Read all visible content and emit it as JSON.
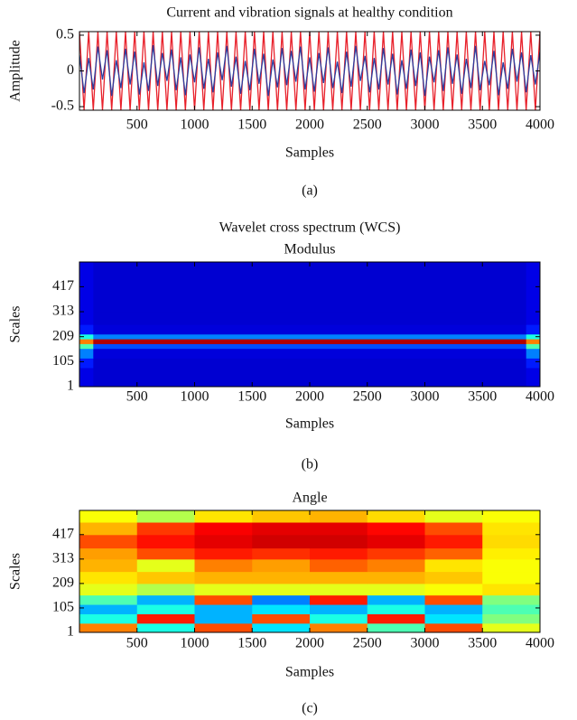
{
  "chart_data": [
    {
      "type": "line",
      "title": "Current and vibration signals at healthy condition",
      "xlabel": "Samples",
      "ylabel": "Amplitude",
      "caption": "(a)",
      "x": [
        0,
        40,
        80,
        120,
        160,
        200,
        240,
        280,
        320,
        360,
        400,
        440,
        480,
        520,
        560,
        600,
        640,
        680,
        720,
        760,
        800,
        840,
        880,
        920,
        960,
        1000,
        1040,
        1080,
        1120,
        1160,
        1200,
        1240,
        1280,
        1320,
        1360,
        1400,
        1440,
        1480,
        1520,
        1560,
        1600,
        1640,
        1680,
        1720,
        1760,
        1800,
        1840,
        1880,
        1920,
        1960,
        2000,
        2040,
        2080,
        2120,
        2160,
        2200,
        2240,
        2280,
        2320,
        2360,
        2400,
        2440,
        2480,
        2520,
        2560,
        2600,
        2640,
        2680,
        2720,
        2760,
        2800,
        2840,
        2880,
        2920,
        2960,
        3000,
        3040,
        3080,
        3120,
        3160,
        3200,
        3240,
        3280,
        3320,
        3360,
        3400,
        3440,
        3480,
        3520,
        3560,
        3600,
        3640,
        3680,
        3720,
        3760,
        3800,
        3840,
        3880,
        3920,
        3960,
        4000
      ],
      "series": [
        {
          "color": "#e8202a",
          "values": [
            0.55,
            -0.55,
            0.55,
            -0.55,
            0.55,
            -0.55,
            0.55,
            -0.55,
            0.55,
            -0.55,
            0.55,
            -0.55,
            0.55,
            -0.55,
            0.55,
            -0.55,
            0.55,
            -0.55,
            0.55,
            -0.55,
            0.55,
            -0.55,
            0.55,
            -0.55,
            0.55,
            -0.55,
            0.55,
            -0.55,
            0.55,
            -0.55,
            0.55,
            -0.55,
            0.55,
            -0.55,
            0.55,
            -0.55,
            0.55,
            -0.55,
            0.55,
            -0.55,
            0.55,
            -0.55,
            0.55,
            -0.55,
            0.55,
            -0.55,
            0.55,
            -0.55,
            0.55,
            -0.55,
            0.55,
            -0.55,
            0.55,
            -0.55,
            0.55,
            -0.55,
            0.55,
            -0.55,
            0.55,
            -0.55,
            0.55,
            -0.55,
            0.55,
            -0.55,
            0.55,
            -0.55,
            0.55,
            -0.55,
            0.55,
            -0.55,
            0.55,
            -0.55,
            0.55,
            -0.55,
            0.55,
            -0.55,
            0.55,
            -0.55,
            0.55,
            -0.55,
            0.55,
            -0.55,
            0.55,
            -0.55,
            0.55,
            -0.55,
            0.55,
            -0.55,
            0.55,
            -0.55,
            0.55,
            -0.55,
            0.55,
            -0.55,
            0.55,
            -0.55,
            0.55,
            -0.55,
            0.55,
            -0.55,
            0.55
          ]
        },
        {
          "color": "#2b3fa0",
          "values": [
            0.22,
            -0.31,
            0.18,
            -0.26,
            0.34,
            -0.12,
            0.29,
            -0.35,
            0.15,
            -0.24,
            0.31,
            -0.19,
            0.27,
            -0.33,
            0.12,
            -0.28,
            0.36,
            -0.21,
            0.25,
            -0.14,
            0.3,
            -0.27,
            0.19,
            -0.34,
            0.23,
            -0.16,
            0.33,
            -0.25,
            0.17,
            -0.3,
            0.26,
            -0.13,
            0.35,
            -0.22,
            0.2,
            -0.32,
            0.14,
            -0.27,
            0.31,
            -0.18,
            0.24,
            -0.35,
            0.16,
            -0.23,
            0.32,
            -0.2,
            0.28,
            -0.15,
            0.34,
            -0.26,
            0.19,
            -0.29,
            0.25,
            -0.17,
            0.33,
            -0.24,
            0.13,
            -0.31,
            0.27,
            -0.22,
            0.35,
            -0.14,
            0.21,
            -0.3,
            0.18,
            -0.26,
            0.32,
            -0.19,
            0.24,
            -0.33,
            0.15,
            -0.25,
            0.3,
            -0.21,
            0.26,
            -0.35,
            0.2,
            -0.16,
            0.29,
            -0.28,
            0.33,
            -0.18,
            0.23,
            -0.32,
            0.17,
            -0.24,
            0.35,
            -0.27,
            0.14,
            -0.2,
            0.28,
            -0.34,
            0.12,
            -0.25,
            0.31,
            -0.15,
            0.26,
            -0.3,
            0.22,
            -0.19,
            0.27
          ]
        }
      ],
      "xlim": [
        0,
        4000
      ],
      "xticks": [
        500,
        1000,
        1500,
        2000,
        2500,
        3000,
        3500,
        4000
      ],
      "ylim": [
        -0.55,
        0.55
      ],
      "yticks": [
        -0.5,
        0,
        0.5
      ]
    },
    {
      "type": "heatmap",
      "title": "Wavelet cross spectrum (WCS)",
      "subtitle": "Modulus",
      "xlabel": "Samples",
      "ylabel": "Scales",
      "caption": "(b)",
      "colormap": "jet",
      "x_edges": [
        0,
        120,
        3880,
        4000
      ],
      "y_edges": [
        1,
        40,
        80,
        120,
        160,
        180,
        200,
        220,
        260,
        313,
        360,
        417,
        470,
        520
      ],
      "z": [
        [
          0.1,
          0.08,
          0.1
        ],
        [
          0.1,
          0.08,
          0.1
        ],
        [
          0.15,
          0.08,
          0.15
        ],
        [
          0.25,
          0.09,
          0.25
        ],
        [
          0.45,
          0.2,
          0.45
        ],
        [
          0.75,
          0.95,
          0.75
        ],
        [
          0.4,
          0.25,
          0.4
        ],
        [
          0.15,
          0.09,
          0.15
        ],
        [
          0.1,
          0.08,
          0.1
        ],
        [
          0.1,
          0.08,
          0.1
        ],
        [
          0.1,
          0.08,
          0.1
        ],
        [
          0.1,
          0.08,
          0.1
        ],
        [
          0.1,
          0.08,
          0.1
        ]
      ],
      "zlim": [
        0,
        1
      ],
      "xlim": [
        0,
        4000
      ],
      "xticks": [
        500,
        1000,
        1500,
        2000,
        2500,
        3000,
        3500,
        4000
      ],
      "ylim": [
        1,
        520
      ],
      "yticks": [
        1,
        105,
        209,
        313,
        417
      ]
    },
    {
      "type": "heatmap",
      "title": "Angle",
      "xlabel": "Samples",
      "ylabel": "Scales",
      "caption": "(c)",
      "colormap": "jet",
      "x_edges": [
        0,
        500,
        1000,
        1500,
        2000,
        2500,
        3000,
        3500,
        4000
      ],
      "y_edges": [
        1,
        40,
        80,
        120,
        160,
        209,
        260,
        313,
        360,
        417,
        470,
        520
      ],
      "z": [
        [
          0.75,
          0.4,
          0.8,
          0.35,
          0.75,
          0.45,
          0.8,
          0.6
        ],
        [
          0.4,
          0.85,
          0.3,
          0.8,
          0.4,
          0.85,
          0.35,
          0.5
        ],
        [
          0.3,
          0.4,
          0.3,
          0.35,
          0.3,
          0.4,
          0.3,
          0.45
        ],
        [
          0.45,
          0.3,
          0.8,
          0.25,
          0.85,
          0.3,
          0.8,
          0.5
        ],
        [
          0.6,
          0.55,
          0.6,
          0.6,
          0.6,
          0.6,
          0.62,
          0.65
        ],
        [
          0.65,
          0.68,
          0.7,
          0.7,
          0.7,
          0.7,
          0.68,
          0.62
        ],
        [
          0.7,
          0.6,
          0.75,
          0.72,
          0.78,
          0.75,
          0.65,
          0.62
        ],
        [
          0.72,
          0.8,
          0.85,
          0.83,
          0.85,
          0.82,
          0.78,
          0.64
        ],
        [
          0.8,
          0.86,
          0.9,
          0.92,
          0.92,
          0.9,
          0.85,
          0.66
        ],
        [
          0.7,
          0.82,
          0.88,
          0.9,
          0.9,
          0.87,
          0.8,
          0.65
        ],
        [
          0.62,
          0.55,
          0.65,
          0.68,
          0.7,
          0.66,
          0.6,
          0.62
        ]
      ],
      "zlim": [
        0,
        1
      ],
      "xlim": [
        0,
        4000
      ],
      "xticks": [
        500,
        1000,
        1500,
        2000,
        2500,
        3000,
        3500,
        4000
      ],
      "ylim": [
        1,
        520
      ],
      "yticks": [
        1,
        105,
        209,
        313,
        417
      ]
    }
  ]
}
